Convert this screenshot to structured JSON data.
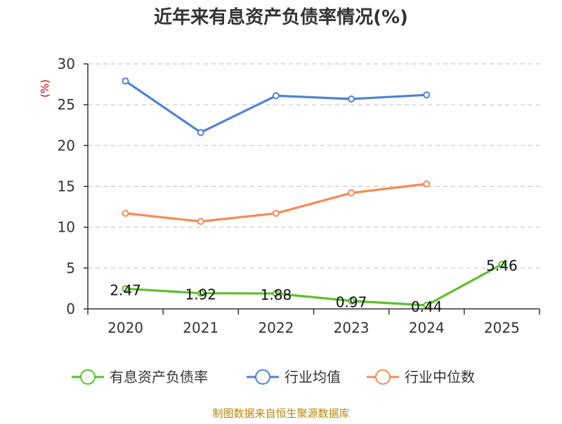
{
  "chart_data": {
    "type": "line",
    "title": "近年来有息资产负债率情况(%)",
    "ylabel": "(%)",
    "xlabel": "",
    "categories": [
      "2020",
      "2021",
      "2022",
      "2023",
      "2024",
      "2025"
    ],
    "ylim": [
      0,
      30
    ],
    "yticks": [
      0,
      5,
      10,
      15,
      20,
      25,
      30
    ],
    "grid": true,
    "legend_position": "bottom",
    "series": [
      {
        "name": "有息资产负债率",
        "color": "#5cc02a",
        "values": [
          2.47,
          1.92,
          1.88,
          0.97,
          0.44,
          5.46
        ],
        "labels": [
          "2.47",
          "1.92",
          "1.88",
          "0.97",
          "0.44",
          "5.46"
        ]
      },
      {
        "name": "行业均值",
        "color": "#4f81d8",
        "values": [
          27.9,
          21.6,
          26.1,
          25.7,
          26.2,
          null
        ]
      },
      {
        "name": "行业中位数",
        "color": "#f78b55",
        "values": [
          11.7,
          10.7,
          11.7,
          14.2,
          15.3,
          null
        ]
      }
    ]
  },
  "source": "制图数据来自恒生聚源数据库"
}
